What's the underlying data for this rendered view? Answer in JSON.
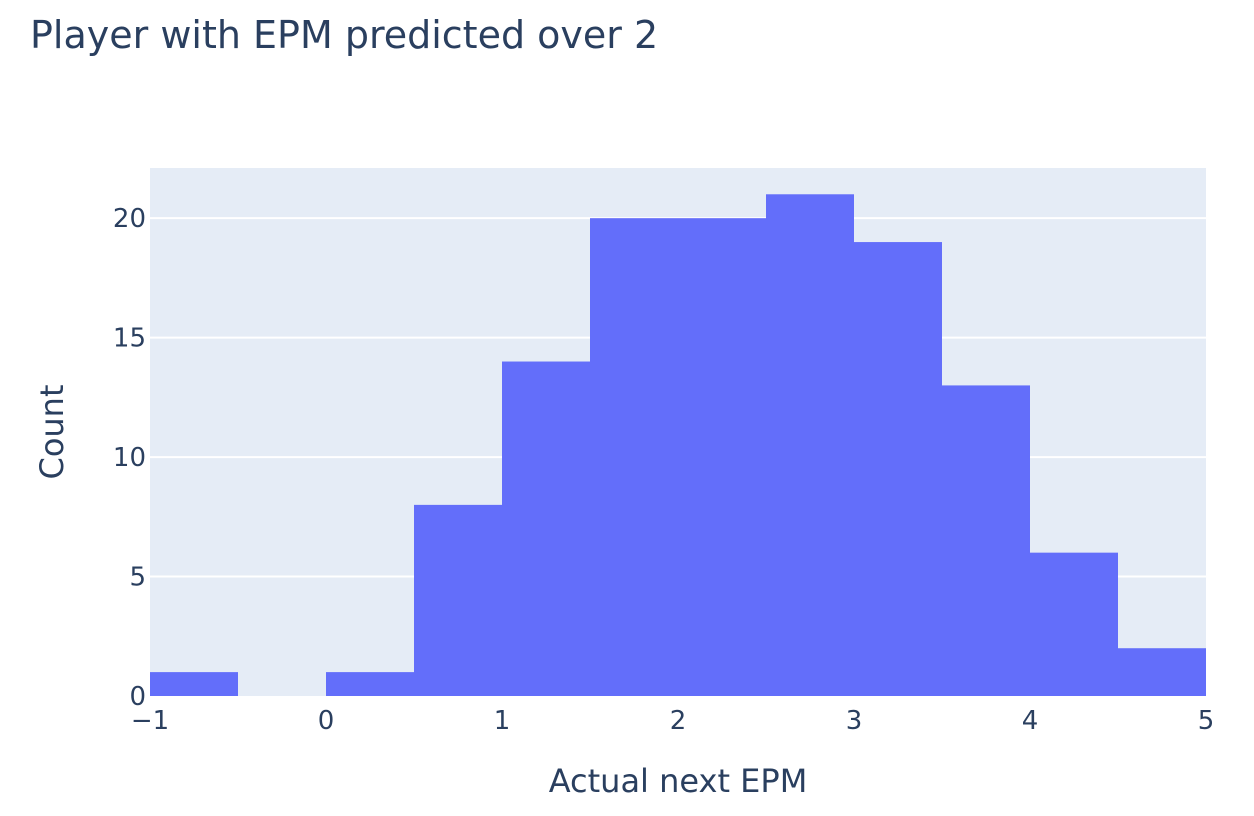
{
  "chart_data": {
    "type": "bar",
    "title": "Player with EPM predicted over 2",
    "xlabel": "Actual next EPM",
    "ylabel": "Count",
    "bin_width": 0.5,
    "bin_starts": [
      -1,
      -0.5,
      0,
      0.5,
      1,
      1.5,
      2,
      2.5,
      3,
      3.5,
      4,
      4.5
    ],
    "values": [
      1,
      0,
      1,
      8,
      14,
      20,
      20,
      21,
      19,
      13,
      6,
      2
    ],
    "xlim": [
      -1,
      5
    ],
    "ylim": [
      0,
      22.1
    ],
    "x_ticks": [
      -1,
      0,
      1,
      2,
      3,
      4,
      5
    ],
    "x_tick_labels": [
      "−1",
      "0",
      "1",
      "2",
      "3",
      "4",
      "5"
    ],
    "y_ticks": [
      0,
      5,
      10,
      15,
      20
    ],
    "y_tick_labels": [
      "0",
      "5",
      "10",
      "15",
      "20"
    ],
    "grid": true,
    "bar_color": "#636efa",
    "plot_bg_color": "#e5ecf6",
    "grid_color": "#ffffff",
    "text_color": "#2a3f5f"
  }
}
